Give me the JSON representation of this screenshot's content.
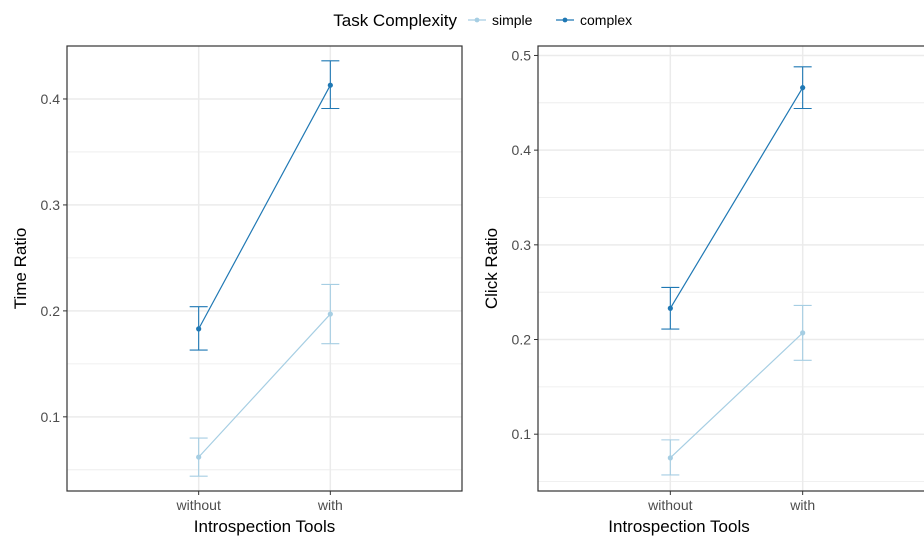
{
  "legend": {
    "title": "Task Complexity",
    "placement": "top"
  },
  "colors": {
    "simple": "#a6cee3",
    "complex": "#1f78b4",
    "grid": "#ebebeb",
    "axis_text": "#4d4d4d",
    "text": "#000000"
  },
  "chart_data": [
    {
      "type": "line",
      "xlabel": "Introspection Tools",
      "ylabel": "Time Ratio",
      "categories": [
        "without",
        "with"
      ],
      "ylim": [
        0.03,
        0.45
      ],
      "yticks": [
        0.1,
        0.2,
        0.3,
        0.4
      ],
      "ytick_labels": [
        "0.1",
        "0.2",
        "0.3",
        "0.4"
      ],
      "grid": true,
      "series": [
        {
          "name": "simple",
          "values": [
            0.062,
            0.197
          ],
          "lower": [
            0.044,
            0.169
          ],
          "upper": [
            0.08,
            0.225
          ]
        },
        {
          "name": "complex",
          "values": [
            0.183,
            0.413
          ],
          "lower": [
            0.163,
            0.391
          ],
          "upper": [
            0.204,
            0.436
          ]
        }
      ]
    },
    {
      "type": "line",
      "xlabel": "Introspection Tools",
      "ylabel": "Click Ratio",
      "categories": [
        "without",
        "with"
      ],
      "ylim": [
        0.04,
        0.51
      ],
      "yticks": [
        0.1,
        0.2,
        0.3,
        0.4,
        0.5
      ],
      "ytick_labels": [
        "0.1",
        "0.2",
        "0.3",
        "0.4",
        "0.5"
      ],
      "grid": true,
      "series": [
        {
          "name": "simple",
          "values": [
            0.075,
            0.207
          ],
          "lower": [
            0.057,
            0.178
          ],
          "upper": [
            0.094,
            0.236
          ]
        },
        {
          "name": "complex",
          "values": [
            0.233,
            0.466
          ],
          "lower": [
            0.211,
            0.444
          ],
          "upper": [
            0.255,
            0.488
          ]
        }
      ]
    }
  ]
}
